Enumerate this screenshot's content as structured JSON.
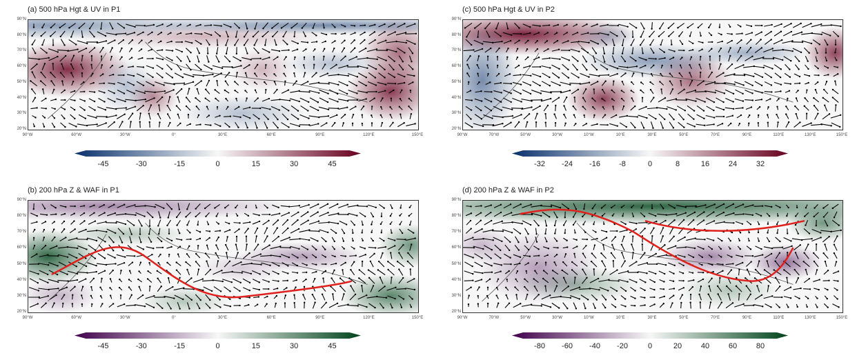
{
  "panels": [
    {
      "id": "a",
      "title": "(a) 500 hPa Hgt & UV in P1",
      "lats": [
        "90°N",
        "80°N",
        "70°N",
        "60°N",
        "50°N",
        "40°N",
        "30°N",
        "20°N"
      ],
      "lons": [
        "90°W",
        "60°W",
        "30°W",
        "0°",
        "30°E",
        "60°E",
        "90°E",
        "120°E",
        "150°E"
      ],
      "colorbar": {
        "ticks": [
          "-45",
          "-30",
          "-15",
          "0",
          "15",
          "30",
          "45"
        ],
        "neg": "#08306b",
        "mid": "#f7f7f7",
        "pos": "#67001f"
      },
      "wave_path": false
    },
    {
      "id": "c",
      "title": "(c) 500 hPa Hgt & UV in P2",
      "lats": [
        "90°N",
        "80°N",
        "70°N",
        "60°N",
        "50°N",
        "40°N",
        "30°N",
        "20°N"
      ],
      "lons": [
        "90°W",
        "70°W",
        "50°W",
        "30°W",
        "10°W",
        "10°E",
        "30°E",
        "50°E",
        "70°E",
        "90°E",
        "110°E",
        "130°E",
        "150°E"
      ],
      "colorbar": {
        "ticks": [
          "-32",
          "-24",
          "-16",
          "-8",
          "0",
          "8",
          "16",
          "24",
          "32"
        ],
        "neg": "#08306b",
        "mid": "#f7f7f7",
        "pos": "#67001f"
      },
      "wave_path": false
    },
    {
      "id": "b",
      "title": "(b) 200 hPa Z & WAF in P1",
      "lats": [
        "90°N",
        "80°N",
        "70°N",
        "60°N",
        "50°N",
        "40°N",
        "30°N",
        "20°N"
      ],
      "lons": [
        "90°W",
        "60°W",
        "30°W",
        "0°",
        "30°E",
        "60°E",
        "90°E",
        "120°E",
        "150°E"
      ],
      "colorbar": {
        "ticks": [
          "-45",
          "-30",
          "-15",
          "0",
          "15",
          "30",
          "45"
        ],
        "neg": "#40004b",
        "mid": "#f7f7f7",
        "pos": "#00441b"
      },
      "wave_path": true
    },
    {
      "id": "d",
      "title": "(d) 200 hPa Z & WAF in P2",
      "lats": [
        "90°N",
        "80°N",
        "70°N",
        "60°N",
        "50°N",
        "40°N",
        "30°N",
        "20°N"
      ],
      "lons": [
        "90°W",
        "70°W",
        "50°W",
        "30°W",
        "10°W",
        "10°E",
        "30°E",
        "50°E",
        "70°E",
        "90°E",
        "110°E",
        "130°E",
        "150°E"
      ],
      "colorbar": {
        "ticks": [
          "-80",
          "-60",
          "-40",
          "-20",
          "0",
          "20",
          "40",
          "60",
          "80"
        ],
        "neg": "#40004b",
        "mid": "#f7f7f7",
        "pos": "#00441b"
      },
      "wave_path": true
    }
  ]
}
